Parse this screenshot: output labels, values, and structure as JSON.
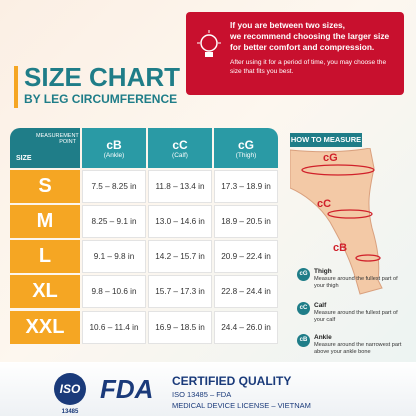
{
  "notice": {
    "lines": [
      "If you are between two sizes,",
      "we recommend choosing the larger size",
      "for better comfort and compression."
    ],
    "note": "After using it for a period of time, you may choose the size that fits you best."
  },
  "header": {
    "title": "SIZE CHART",
    "subtitle": "BY LEG CIRCUMFERENCE"
  },
  "table": {
    "corner_top": "MEASUREMENT POINT",
    "corner_bottom": "SIZE",
    "columns": [
      {
        "code": "cB",
        "name": "(Ankle)"
      },
      {
        "code": "cC",
        "name": "(Calf)"
      },
      {
        "code": "cG",
        "name": "(Thigh)"
      }
    ],
    "rows": [
      [
        "S",
        "7.5 – 8.25 in",
        "11.8 – 13.4 in",
        "17.3 – 18.9 in"
      ],
      [
        "M",
        "8.25 – 9.1 in",
        "13.0 – 14.6 in",
        "18.9 – 20.5 in"
      ],
      [
        "L",
        "9.1 – 9.8 in",
        "14.2 – 15.7 in",
        "20.9 – 22.4 in"
      ],
      [
        "XL",
        "9.8 – 10.6 in",
        "15.7 – 17.3 in",
        "22.8 – 24.4 in"
      ],
      [
        "XXL",
        "10.6 – 11.4 in",
        "16.9 – 18.5 in",
        "24.4 – 26.0 in"
      ]
    ]
  },
  "how_to_measure": {
    "title": "HOW TO MEASURE",
    "leg_labels": [
      "cG",
      "cC",
      "cB"
    ],
    "legend": [
      {
        "code": "cG",
        "name": "Thigh",
        "text": "Measure around the fullest part of your thigh"
      },
      {
        "code": "cC",
        "name": "Calf",
        "text": "Measure around the fullest part of your calf"
      },
      {
        "code": "cB",
        "name": "Ankle",
        "text": "Measure around the narrowest part above your ankle bone"
      }
    ]
  },
  "footer": {
    "iso": "ISO",
    "iso_number": "13485",
    "fda": "FDA",
    "title": "CERTIFIED QUALITY",
    "lines": [
      "ISO 13485 – FDA",
      "MEDICAL DEVICE LICENSE – VIETNAM"
    ]
  }
}
